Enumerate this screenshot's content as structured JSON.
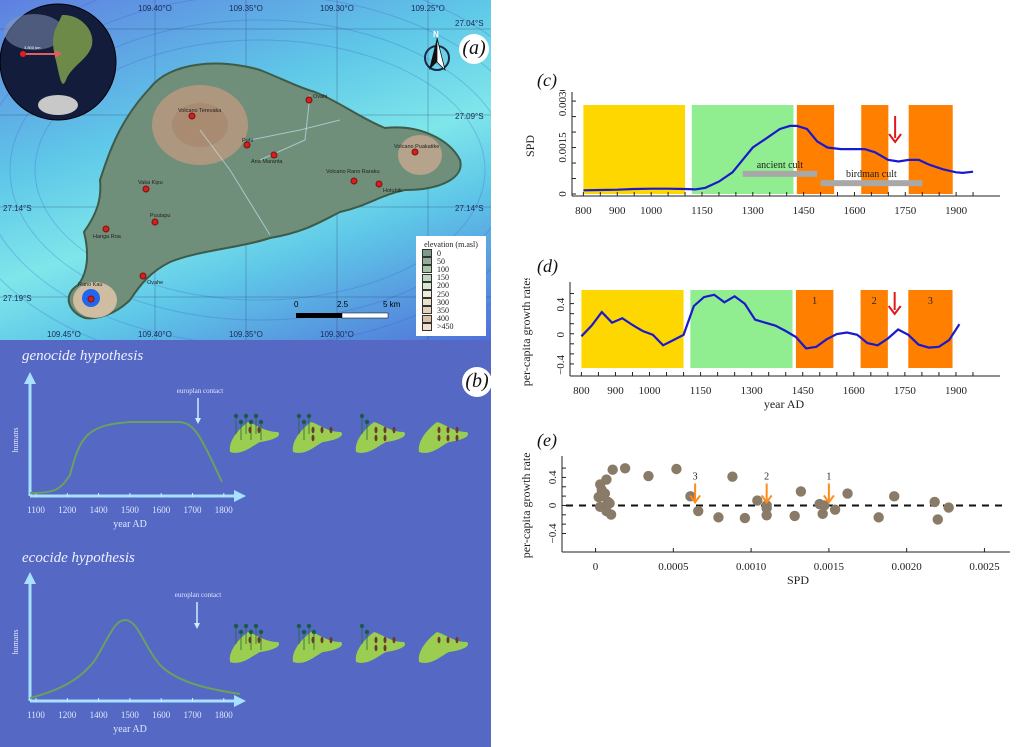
{
  "panel_a": {
    "label": "(a)",
    "globe_distance": "3,800 km",
    "lon_ticks_top": [
      "109.40°O",
      "109.35°O",
      "109.30°O",
      "109.25°O"
    ],
    "lon_ticks_bottom": [
      "109.45°O",
      "109.40°O",
      "109.35°O",
      "109.30°O"
    ],
    "lat_ticks": [
      "27.04°S",
      "27.09°S",
      "27.14°S",
      "27.19°S"
    ],
    "north_label": "N",
    "places": [
      "Volcano Terevaka",
      "Ovahi",
      "Puhi",
      "Ana Maranta",
      "Volcano Puakatike",
      "Volcano Rano Raraku",
      "Hotuhiti",
      "Vaka Kipu",
      "Puutapu",
      "Hanga Roa",
      "Rano Kau",
      "Ovahe"
    ],
    "scale_labels": [
      "0",
      "2.5",
      "5 km"
    ],
    "legend_title": "elevation (m.asl)",
    "legend_items": [
      "0",
      "50",
      "100",
      "150",
      "200",
      "250",
      "300",
      "350",
      "400",
      ">450"
    ],
    "legend_colors": [
      "#7f9a8a",
      "#95ad98",
      "#a8c2a8",
      "#bfd8bc",
      "#d6e8cf",
      "#ebeed8",
      "#eae2cc",
      "#e3d3bb",
      "#d9c2a6",
      "#efe0cc"
    ]
  },
  "panel_b": {
    "label": "(b)",
    "genocide": {
      "title": "genocide hypothesis",
      "contact": "europlan contact",
      "ylabel": "humans",
      "xlabel": "year AD",
      "ticks": [
        "1100",
        "1200",
        "1400",
        "1500",
        "1600",
        "1700",
        "1800"
      ]
    },
    "ecocide": {
      "title": "ecocide hypothesis",
      "contact": "europlan contact",
      "ylabel": "humans",
      "xlabel": "year AD",
      "ticks": [
        "1100",
        "1200",
        "1400",
        "1500",
        "1600",
        "1700",
        "1800"
      ]
    }
  },
  "chart_data": [
    {
      "id": "c",
      "type": "line",
      "title": "(c)",
      "xlabel": "",
      "ylabel": "SPD",
      "xlim": [
        790,
        2000
      ],
      "ylim": [
        0,
        0.0031
      ],
      "xticks": [
        800,
        900,
        1000,
        1150,
        1300,
        1450,
        1600,
        1750,
        1900
      ],
      "yticks": [
        0,
        0.0015,
        0.003
      ],
      "ytick_labels": [
        "0",
        "0.0015",
        "0.0030"
      ],
      "bands": [
        {
          "from": 800,
          "to": 1100,
          "color": "#ffd700"
        },
        {
          "from": 1120,
          "to": 1420,
          "color": "#90ee90"
        },
        {
          "from": 1430,
          "to": 1540,
          "color": "#ff7f00"
        },
        {
          "from": 1620,
          "to": 1700,
          "color": "#ff7f00"
        },
        {
          "from": 1760,
          "to": 1890,
          "color": "#ff7f00"
        }
      ],
      "cult_bars": [
        {
          "label": "ancient cult",
          "from": 1270,
          "to": 1490,
          "y": 0.00065
        },
        {
          "label": "birdman cult",
          "from": 1500,
          "to": 1800,
          "y": 0.00035
        }
      ],
      "arrow_year": 1720,
      "series": [
        {
          "name": "SPD",
          "color": "#1a1acc",
          "x": [
            800,
            850,
            900,
            950,
            1000,
            1050,
            1100,
            1130,
            1160,
            1200,
            1240,
            1270,
            1300,
            1340,
            1380,
            1410,
            1430,
            1460,
            1490,
            1520,
            1560,
            1600,
            1630,
            1660,
            1700,
            1730,
            1760,
            1790,
            1820,
            1860,
            1900,
            1920,
            1950
          ],
          "values": [
            0.00012,
            0.00013,
            0.00014,
            0.00016,
            0.00017,
            0.00017,
            0.00016,
            0.00015,
            0.0002,
            0.0004,
            0.0007,
            0.0011,
            0.0015,
            0.0018,
            0.0021,
            0.0022,
            0.0022,
            0.0021,
            0.0017,
            0.0015,
            0.00145,
            0.00145,
            0.00145,
            0.00135,
            0.0011,
            0.00105,
            0.0011,
            0.0011,
            0.00095,
            0.0008,
            0.0007,
            0.00068,
            0.00072
          ]
        }
      ]
    },
    {
      "id": "d",
      "type": "line",
      "title": "(d)",
      "xlabel": "year AD",
      "ylabel": "per-capita growth rates",
      "xlim": [
        790,
        2000
      ],
      "ylim": [
        -0.52,
        0.62
      ],
      "xticks": [
        800,
        900,
        1000,
        1150,
        1300,
        1450,
        1600,
        1750,
        1900
      ],
      "yticks": [
        -0.4,
        0,
        0.4
      ],
      "ytick_labels": [
        "−0.4",
        "0",
        "0.4"
      ],
      "bands": [
        {
          "from": 800,
          "to": 1100,
          "color": "#ffd700",
          "label": ""
        },
        {
          "from": 1120,
          "to": 1420,
          "color": "#90ee90",
          "label": ""
        },
        {
          "from": 1430,
          "to": 1540,
          "color": "#ff7f00",
          "label": "1"
        },
        {
          "from": 1620,
          "to": 1700,
          "color": "#ff7f00",
          "label": "2"
        },
        {
          "from": 1760,
          "to": 1890,
          "color": "#ff7f00",
          "label": "3"
        }
      ],
      "arrow_year": 1720,
      "series": [
        {
          "name": "growth",
          "color": "#1a1acc",
          "x": [
            800,
            830,
            860,
            890,
            920,
            950,
            980,
            1010,
            1040,
            1070,
            1100,
            1130,
            1160,
            1190,
            1220,
            1250,
            1280,
            1310,
            1340,
            1370,
            1400,
            1430,
            1460,
            1490,
            1520,
            1550,
            1580,
            1610,
            1640,
            1670,
            1700,
            1730,
            1760,
            1790,
            1820,
            1850,
            1880,
            1910
          ],
          "values": [
            -0.02,
            0.12,
            0.3,
            0.16,
            0.22,
            0.13,
            0.05,
            0.0,
            -0.14,
            -0.07,
            0.0,
            0.38,
            0.5,
            0.53,
            0.43,
            0.51,
            0.41,
            0.2,
            0.16,
            0.12,
            0.05,
            -0.03,
            -0.18,
            -0.16,
            -0.06,
            0.01,
            0.03,
            0.0,
            -0.11,
            -0.14,
            -0.05,
            0.07,
            0.0,
            -0.13,
            -0.17,
            -0.16,
            -0.07,
            0.14
          ]
        }
      ]
    },
    {
      "id": "e",
      "type": "scatter",
      "title": "(e)",
      "xlabel": "SPD",
      "ylabel": "per-capita growth rates",
      "xlim": [
        -0.0001,
        0.0026
      ],
      "ylim": [
        -0.55,
        0.62
      ],
      "xticks": [
        0,
        0.0005,
        0.001,
        0.0015,
        0.002,
        0.0025
      ],
      "xtick_labels": [
        "0",
        "0.0005",
        "0.0010",
        "0.0015",
        "0.0020",
        "0.0025"
      ],
      "yticks": [
        -0.4,
        0,
        0.4
      ],
      "ytick_labels": [
        "−0.4",
        "0",
        "0.4"
      ],
      "point_color": "#8a7a68",
      "arrow_color": "#ff8c1a",
      "arrows": [
        {
          "label": "3",
          "x": 0.00064
        },
        {
          "label": "2",
          "x": 0.0011
        },
        {
          "label": "1",
          "x": 0.0015
        }
      ],
      "points": [
        [
          3e-05,
          0.3
        ],
        [
          2e-05,
          0.12
        ],
        [
          4e-05,
          0.22
        ],
        [
          6e-05,
          0.17
        ],
        [
          5e-05,
          0.13
        ],
        [
          8e-05,
          0.05
        ],
        [
          9e-05,
          0.03
        ],
        [
          3e-05,
          -0.02
        ],
        [
          7e-05,
          -0.08
        ],
        [
          0.0001,
          -0.13
        ],
        [
          7e-05,
          0.37
        ],
        [
          0.00011,
          0.51
        ],
        [
          0.00019,
          0.53
        ],
        [
          0.00034,
          0.42
        ],
        [
          0.00052,
          0.52
        ],
        [
          0.00061,
          0.13
        ],
        [
          0.00066,
          -0.08
        ],
        [
          0.00079,
          -0.17
        ],
        [
          0.00088,
          0.41
        ],
        [
          0.00096,
          -0.18
        ],
        [
          0.00104,
          0.07
        ],
        [
          0.0011,
          -0.04
        ],
        [
          0.0011,
          0.0
        ],
        [
          0.0011,
          -0.14
        ],
        [
          0.00128,
          -0.15
        ],
        [
          0.00132,
          0.2
        ],
        [
          0.00144,
          0.02
        ],
        [
          0.00146,
          -0.12
        ],
        [
          0.00147,
          0.0
        ],
        [
          0.00154,
          -0.06
        ],
        [
          0.00162,
          0.17
        ],
        [
          0.00182,
          -0.17
        ],
        [
          0.00192,
          0.13
        ],
        [
          0.00218,
          0.05
        ],
        [
          0.0022,
          -0.2
        ],
        [
          0.00227,
          -0.03
        ]
      ]
    }
  ]
}
